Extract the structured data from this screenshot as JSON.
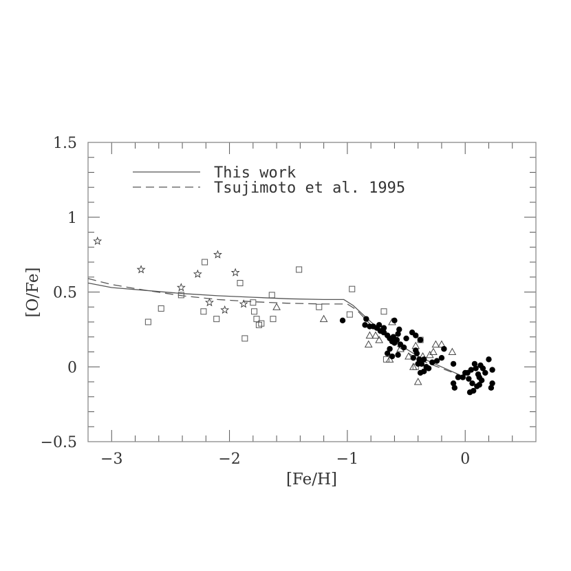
{
  "chart_data": {
    "type": "scatter",
    "title": "",
    "xlabel": "[Fe/H]",
    "ylabel": "[O/Fe]",
    "xlim": [
      -3.2,
      0.6
    ],
    "ylim": [
      -0.5,
      1.5
    ],
    "grid": false,
    "legend_position": "upper left",
    "x_ticks": [
      {
        "value": -3,
        "label": "−3"
      },
      {
        "value": -2,
        "label": "−2"
      },
      {
        "value": -1,
        "label": "−1"
      },
      {
        "value": 0,
        "label": "0"
      }
    ],
    "y_ticks": [
      {
        "value": -0.5,
        "label": "−0.5"
      },
      {
        "value": 0,
        "label": "0"
      },
      {
        "value": 0.5,
        "label": "0.5"
      },
      {
        "value": 1,
        "label": "1"
      },
      {
        "value": 1.5,
        "label": "1.5"
      }
    ],
    "legend": [
      {
        "label": "This work",
        "style": "solid"
      },
      {
        "label": "Tsujimoto et al. 1995",
        "style": "dashed"
      }
    ],
    "lines": [
      {
        "name": "This work",
        "style": "solid",
        "x": [
          -3.2,
          -3.0,
          -2.7,
          -2.4,
          -2.1,
          -1.8,
          -1.5,
          -1.2,
          -1.03,
          -0.95,
          -0.8,
          -0.6,
          -0.4,
          -0.2,
          0.0
        ],
        "y": [
          0.56,
          0.53,
          0.51,
          0.49,
          0.475,
          0.465,
          0.455,
          0.45,
          0.45,
          0.41,
          0.3,
          0.17,
          0.07,
          0.0,
          -0.07
        ]
      },
      {
        "name": "Tsujimoto et al. 1995",
        "style": "dashed",
        "x": [
          -3.2,
          -3.0,
          -2.7,
          -2.4,
          -2.1,
          -1.8,
          -1.5,
          -1.2,
          -1.0,
          -0.92,
          -0.8,
          -0.6,
          -0.4,
          -0.2,
          0.0
        ],
        "y": [
          0.59,
          0.55,
          0.51,
          0.475,
          0.45,
          0.435,
          0.425,
          0.42,
          0.42,
          0.38,
          0.28,
          0.15,
          0.05,
          -0.01,
          -0.07
        ]
      }
    ],
    "series": [
      {
        "name": "stars",
        "marker": "star",
        "points": [
          [
            -3.12,
            0.84
          ],
          [
            -2.75,
            0.65
          ],
          [
            -2.41,
            0.53
          ],
          [
            -2.27,
            0.62
          ],
          [
            -2.17,
            0.43
          ],
          [
            -2.1,
            0.75
          ],
          [
            -2.04,
            0.38
          ],
          [
            -1.95,
            0.63
          ],
          [
            -1.88,
            0.42
          ]
        ]
      },
      {
        "name": "open squares",
        "marker": "square",
        "points": [
          [
            -2.69,
            0.3
          ],
          [
            -2.58,
            0.39
          ],
          [
            -2.41,
            0.48
          ],
          [
            -2.21,
            0.7
          ],
          [
            -2.22,
            0.37
          ],
          [
            -2.11,
            0.32
          ],
          [
            -1.91,
            0.56
          ],
          [
            -1.87,
            0.19
          ],
          [
            -1.8,
            0.43
          ],
          [
            -1.79,
            0.37
          ],
          [
            -1.77,
            0.32
          ],
          [
            -1.75,
            0.28
          ],
          [
            -1.73,
            0.29
          ],
          [
            -1.64,
            0.48
          ],
          [
            -1.63,
            0.32
          ],
          [
            -1.41,
            0.65
          ],
          [
            -1.24,
            0.4
          ],
          [
            -0.96,
            0.52
          ],
          [
            -0.98,
            0.35
          ],
          [
            -0.69,
            0.37
          ],
          [
            -0.67,
            0.05
          ],
          [
            -0.38,
            0.18
          ],
          [
            -0.42,
            -0.0
          ]
        ]
      },
      {
        "name": "open triangles",
        "marker": "triangle",
        "points": [
          [
            -1.6,
            0.4
          ],
          [
            -1.2,
            0.32
          ],
          [
            -0.81,
            0.21
          ],
          [
            -0.82,
            0.15
          ],
          [
            -0.76,
            0.21
          ],
          [
            -0.73,
            0.18
          ],
          [
            -0.62,
            0.3
          ],
          [
            -0.64,
            0.05
          ],
          [
            -0.55,
            0.12
          ],
          [
            -0.48,
            0.07
          ],
          [
            -0.44,
            0.0
          ],
          [
            -0.4,
            -0.1
          ],
          [
            -0.42,
            0.14
          ],
          [
            -0.36,
            0.07
          ],
          [
            -0.3,
            0.08
          ],
          [
            -0.25,
            0.15
          ],
          [
            -0.2,
            0.15
          ],
          [
            -0.27,
            0.1
          ],
          [
            -0.11,
            0.1
          ]
        ]
      },
      {
        "name": "filled circles",
        "marker": "dot",
        "points": [
          [
            -1.04,
            0.31
          ],
          [
            -0.84,
            0.32
          ],
          [
            -0.85,
            0.28
          ],
          [
            -0.81,
            0.27
          ],
          [
            -0.78,
            0.27
          ],
          [
            -0.75,
            0.26
          ],
          [
            -0.73,
            0.28
          ],
          [
            -0.72,
            0.24
          ],
          [
            -0.69,
            0.23
          ],
          [
            -0.69,
            0.26
          ],
          [
            -0.66,
            0.21
          ],
          [
            -0.64,
            0.19
          ],
          [
            -0.62,
            0.17
          ],
          [
            -0.6,
            0.16
          ],
          [
            -0.61,
            0.2
          ],
          [
            -0.58,
            0.18
          ],
          [
            -0.56,
            0.25
          ],
          [
            -0.57,
            0.22
          ],
          [
            -0.6,
            0.31
          ],
          [
            -0.64,
            0.12
          ],
          [
            -0.66,
            0.09
          ],
          [
            -0.62,
            0.07
          ],
          [
            -0.57,
            0.08
          ],
          [
            -0.55,
            0.15
          ],
          [
            -0.5,
            0.19
          ],
          [
            -0.52,
            0.13
          ],
          [
            -0.45,
            0.23
          ],
          [
            -0.42,
            0.21
          ],
          [
            -0.38,
            0.18
          ],
          [
            -0.44,
            0.06
          ],
          [
            -0.41,
            0.09
          ],
          [
            -0.39,
            0.05
          ],
          [
            -0.37,
            0.02
          ],
          [
            -0.35,
            0.05
          ],
          [
            -0.33,
            0.0
          ],
          [
            -0.4,
            0.02
          ],
          [
            -0.42,
            0.11
          ],
          [
            -0.38,
            -0.04
          ],
          [
            -0.35,
            -0.03
          ],
          [
            -0.31,
            -0.01
          ],
          [
            -0.28,
            0.03
          ],
          [
            -0.24,
            0.04
          ],
          [
            -0.2,
            0.06
          ],
          [
            -0.18,
            0.12
          ],
          [
            -0.1,
            0.02
          ],
          [
            -0.06,
            -0.07
          ],
          [
            -0.02,
            -0.07
          ],
          [
            -0.0,
            -0.04
          ],
          [
            0.02,
            -0.04
          ],
          [
            0.03,
            -0.08
          ],
          [
            0.06,
            -0.11
          ],
          [
            -0.1,
            -0.11
          ],
          [
            -0.09,
            -0.14
          ],
          [
            0.05,
            -0.02
          ],
          [
            0.08,
            0.02
          ],
          [
            0.09,
            -0.01
          ],
          [
            0.11,
            -0.05
          ],
          [
            0.12,
            -0.07
          ],
          [
            0.14,
            -0.09
          ],
          [
            0.1,
            -0.13
          ],
          [
            0.07,
            -0.16
          ],
          [
            0.04,
            -0.17
          ],
          [
            0.15,
            -0.01
          ],
          [
            0.13,
            0.01
          ],
          [
            0.2,
            0.05
          ],
          [
            0.23,
            -0.02
          ],
          [
            0.23,
            -0.11
          ],
          [
            0.22,
            -0.14
          ],
          [
            0.12,
            -0.12
          ],
          [
            0.17,
            -0.04
          ]
        ]
      }
    ]
  }
}
